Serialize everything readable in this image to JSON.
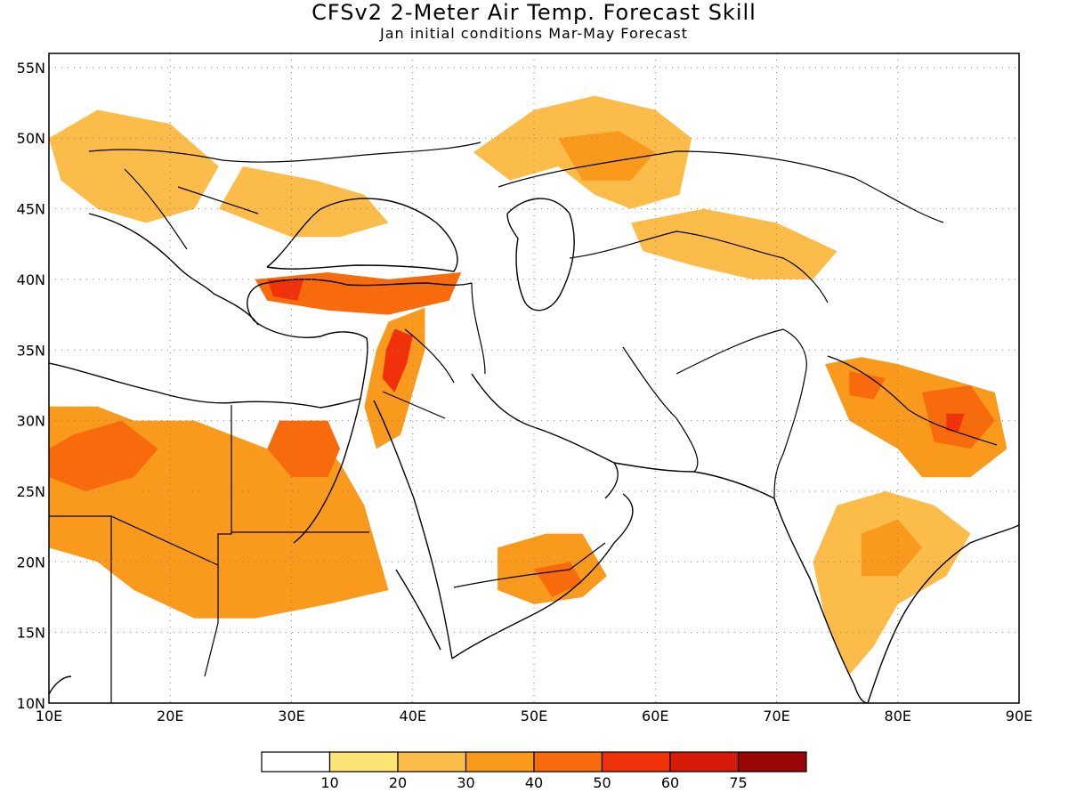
{
  "title": "CFSv2 2-Meter Air Temp. Forecast Skill",
  "subtitle": "Jan initial conditions  Mar-May Forecast",
  "map": {
    "lon_range": [
      10,
      90
    ],
    "lat_range": [
      10,
      56
    ],
    "lon_ticks": [
      "10E",
      "20E",
      "30E",
      "40E",
      "50E",
      "60E",
      "70E",
      "80E",
      "90E"
    ],
    "lat_ticks": [
      "10N",
      "15N",
      "20N",
      "25N",
      "30N",
      "35N",
      "40N",
      "45N",
      "50N",
      "55N"
    ],
    "grid": "dotted"
  },
  "colorbar": {
    "labels": [
      "10",
      "20",
      "30",
      "40",
      "50",
      "60",
      "75"
    ],
    "colors": [
      "#ffffff",
      "#fde274",
      "#fbbc4a",
      "#f99a1c",
      "#f76b0c",
      "#f1310a",
      "#d81a08",
      "#9b0606"
    ]
  },
  "chart_data": {
    "type": "heatmap",
    "variable": "2-meter air temperature forecast skill",
    "x_range": [
      10,
      90
    ],
    "y_range": [
      10,
      56
    ],
    "levels": [
      10,
      20,
      30,
      40,
      50,
      60,
      75
    ],
    "regions": [
      {
        "level": 30,
        "points": [
          [
            10,
            31
          ],
          [
            14,
            31
          ],
          [
            17,
            30
          ],
          [
            22,
            30
          ],
          [
            25,
            29
          ],
          [
            28,
            28
          ],
          [
            32,
            29
          ],
          [
            34,
            27
          ],
          [
            36,
            24
          ],
          [
            37,
            21
          ],
          [
            38,
            18
          ],
          [
            33,
            17
          ],
          [
            27,
            16
          ],
          [
            22,
            16
          ],
          [
            17,
            18
          ],
          [
            14,
            20
          ],
          [
            10,
            21
          ]
        ]
      },
      {
        "level": 40,
        "points": [
          [
            12,
            29
          ],
          [
            16,
            30
          ],
          [
            19,
            28
          ],
          [
            17,
            26
          ],
          [
            13,
            25
          ],
          [
            10,
            26
          ],
          [
            10,
            28
          ]
        ]
      },
      {
        "level": 40,
        "points": [
          [
            29,
            30
          ],
          [
            33,
            30
          ],
          [
            34,
            28
          ],
          [
            33,
            26
          ],
          [
            30,
            26
          ],
          [
            28,
            28
          ]
        ]
      },
      {
        "level": 30,
        "points": [
          [
            38,
            37
          ],
          [
            41,
            38
          ],
          [
            41,
            35
          ],
          [
            40,
            32
          ],
          [
            39,
            29
          ],
          [
            37,
            28
          ],
          [
            36,
            31
          ],
          [
            37,
            35
          ]
        ]
      },
      {
        "level": 50,
        "points": [
          [
            38.5,
            36.5
          ],
          [
            40,
            36
          ],
          [
            39.5,
            34
          ],
          [
            38.5,
            32
          ],
          [
            37.5,
            33
          ],
          [
            37.8,
            35
          ]
        ]
      },
      {
        "level": 40,
        "points": [
          [
            27,
            40
          ],
          [
            33,
            40.5
          ],
          [
            38,
            40
          ],
          [
            44,
            40.5
          ],
          [
            43,
            38.5
          ],
          [
            38,
            37.5
          ],
          [
            33,
            37.8
          ],
          [
            28,
            38.5
          ]
        ]
      },
      {
        "level": 50,
        "points": [
          [
            28,
            40
          ],
          [
            31,
            40
          ],
          [
            30.5,
            38.5
          ],
          [
            28.5,
            38.8
          ]
        ]
      },
      {
        "level": 20,
        "points": [
          [
            26,
            48
          ],
          [
            32,
            47
          ],
          [
            36,
            46
          ],
          [
            38,
            44
          ],
          [
            34,
            43
          ],
          [
            30,
            43
          ],
          [
            27,
            44
          ],
          [
            24,
            45
          ]
        ]
      },
      {
        "level": 20,
        "points": [
          [
            45,
            49
          ],
          [
            50,
            52
          ],
          [
            55,
            53
          ],
          [
            60,
            52
          ],
          [
            63,
            50
          ],
          [
            62,
            46
          ],
          [
            58,
            45
          ],
          [
            55,
            46
          ],
          [
            52,
            48
          ],
          [
            48,
            47
          ]
        ]
      },
      {
        "level": 30,
        "points": [
          [
            52,
            50
          ],
          [
            57,
            50.5
          ],
          [
            60,
            49
          ],
          [
            58,
            47
          ],
          [
            54,
            47
          ]
        ]
      },
      {
        "level": 30,
        "points": [
          [
            47,
            21
          ],
          [
            51,
            22
          ],
          [
            54,
            22
          ],
          [
            56,
            19
          ],
          [
            54,
            17.5
          ],
          [
            50,
            17
          ],
          [
            47,
            18
          ]
        ]
      },
      {
        "level": 40,
        "points": [
          [
            50,
            19.5
          ],
          [
            53,
            20
          ],
          [
            54,
            18.5
          ],
          [
            51.5,
            17.5
          ]
        ]
      },
      {
        "level": 20,
        "points": [
          [
            75,
            24
          ],
          [
            79,
            25
          ],
          [
            83,
            24
          ],
          [
            86,
            22
          ],
          [
            84,
            19
          ],
          [
            80,
            17
          ],
          [
            78,
            14
          ],
          [
            76,
            12
          ],
          [
            74,
            16
          ],
          [
            73,
            20
          ]
        ]
      },
      {
        "level": 30,
        "points": [
          [
            77,
            22
          ],
          [
            80,
            23
          ],
          [
            82,
            21
          ],
          [
            80,
            19
          ],
          [
            77,
            19
          ]
        ]
      },
      {
        "level": 30,
        "points": [
          [
            74,
            34
          ],
          [
            77,
            34.5
          ],
          [
            80,
            34
          ],
          [
            84,
            33
          ],
          [
            88,
            32
          ],
          [
            89,
            28
          ],
          [
            86,
            26
          ],
          [
            82,
            26
          ],
          [
            80,
            28
          ],
          [
            76,
            30
          ]
        ]
      },
      {
        "level": 40,
        "points": [
          [
            76,
            33.5
          ],
          [
            79,
            33
          ],
          [
            78,
            31.5
          ],
          [
            76,
            31.8
          ]
        ]
      },
      {
        "level": 40,
        "points": [
          [
            82,
            32
          ],
          [
            86,
            32.5
          ],
          [
            88,
            30
          ],
          [
            86,
            28
          ],
          [
            83,
            28.5
          ]
        ]
      },
      {
        "level": 50,
        "points": [
          [
            84,
            30.5
          ],
          [
            85.5,
            30.5
          ],
          [
            85,
            29.2
          ],
          [
            84,
            29.3
          ]
        ]
      },
      {
        "level": 20,
        "points": [
          [
            10,
            50
          ],
          [
            14,
            52
          ],
          [
            20,
            51
          ],
          [
            24,
            48
          ],
          [
            22,
            45
          ],
          [
            18,
            44
          ],
          [
            14,
            45
          ],
          [
            11,
            47
          ]
        ]
      },
      {
        "level": 20,
        "points": [
          [
            58,
            44
          ],
          [
            64,
            45
          ],
          [
            70,
            44
          ],
          [
            75,
            42
          ],
          [
            73,
            40
          ],
          [
            68,
            40
          ],
          [
            63,
            41
          ],
          [
            59,
            42
          ]
        ]
      }
    ]
  }
}
